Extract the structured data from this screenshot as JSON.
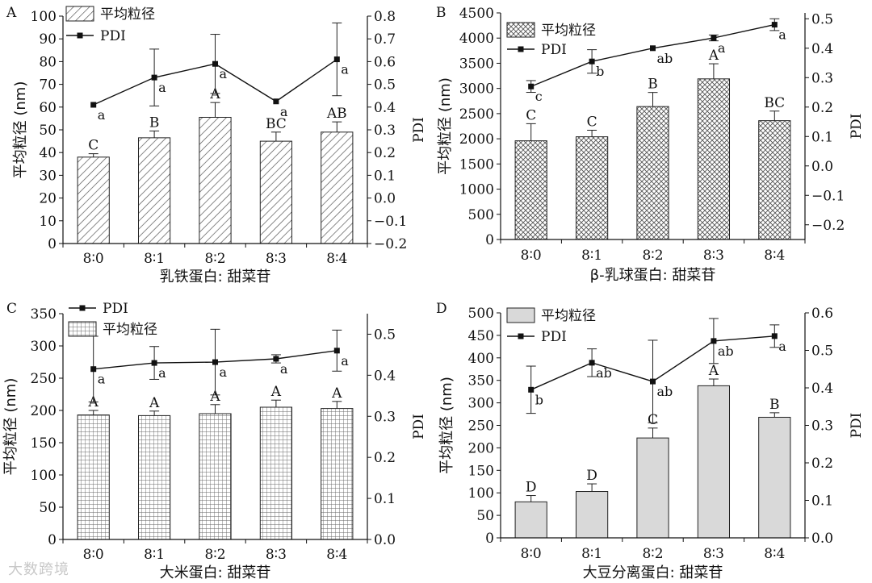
{
  "watermark": "大数跨境",
  "chart_data": [
    {
      "panel_label": "A",
      "type": "bar+line",
      "xlabel": "乳铁蛋白: 甜菜苷",
      "ylabel": "平均粒径 (nm)",
      "y2label": "PDI",
      "categories": [
        "8∶0",
        "8∶1",
        "8∶2",
        "8∶3",
        "8∶4"
      ],
      "bar_series": {
        "name": "平均粒径",
        "pattern": "diagonal",
        "values": [
          38,
          46.5,
          55.5,
          45,
          49
        ],
        "errors": [
          1.5,
          3,
          6.5,
          4,
          4.5
        ],
        "labels": [
          "C",
          "B",
          "A",
          "BC",
          "AB"
        ]
      },
      "line_series": {
        "name": "PDI",
        "values": [
          0.41,
          0.53,
          0.59,
          0.425,
          0.61
        ],
        "errors": [
          0,
          0.125,
          0.13,
          0,
          0.16
        ],
        "labels": [
          "a",
          "a",
          "a",
          "a",
          "a"
        ]
      },
      "ylim": [
        0,
        100
      ],
      "yticks": [
        0,
        10,
        20,
        30,
        40,
        50,
        60,
        70,
        80,
        90,
        100
      ],
      "y2lim": [
        -0.2,
        0.8
      ],
      "y2ticks": [
        "-0.2",
        "-0.1",
        "0.0",
        "0.1",
        "0.2",
        "0.3",
        "0.4",
        "0.5",
        "0.6",
        "0.7",
        "0.8"
      ],
      "legend": [
        "平均粒径",
        "PDI"
      ]
    },
    {
      "panel_label": "B",
      "type": "bar+line",
      "xlabel": "β-乳球蛋白: 甜菜苷",
      "ylabel": "平均粒径 (nm)",
      "y2label": "PDI",
      "categories": [
        "8∶0",
        "8∶1",
        "8∶2",
        "8∶3",
        "8∶4"
      ],
      "bar_series": {
        "name": "平均粒径",
        "pattern": "crosshatch",
        "values": [
          1960,
          2040,
          2640,
          3190,
          2360
        ],
        "errors": [
          340,
          130,
          280,
          300,
          190
        ],
        "labels": [
          "C",
          "C",
          "B",
          "A",
          "BC"
        ]
      },
      "line_series": {
        "name": "PDI",
        "values": [
          0.27,
          0.355,
          0.4,
          0.435,
          0.48
        ],
        "errors": [
          0.02,
          0.04,
          0,
          0.01,
          0.02
        ],
        "labels": [
          "c",
          "b",
          "ab",
          "a",
          "a"
        ]
      },
      "ylim": [
        0,
        4500
      ],
      "yticks": [
        0,
        500,
        1000,
        1500,
        2000,
        2500,
        3000,
        3500,
        4000,
        4500
      ],
      "y2lim": [
        -0.25,
        0.52
      ],
      "y2ticks": [
        "-0.2",
        "-0.1",
        "0.0",
        "0.1",
        "0.2",
        "0.3",
        "0.4",
        "0.5"
      ],
      "legend": [
        "平均粒径",
        "PDI"
      ]
    },
    {
      "panel_label": "C",
      "type": "bar+line",
      "xlabel": "大米蛋白: 甜菜苷",
      "ylabel": "平均粒径 (nm)",
      "y2label": "PDI",
      "categories": [
        "8∶0",
        "8∶1",
        "8∶2",
        "8∶3",
        "8∶4"
      ],
      "bar_series": {
        "name": "平均粒径",
        "pattern": "grid",
        "values": [
          193,
          192,
          195,
          205,
          203
        ],
        "errors": [
          7,
          7,
          14,
          11,
          11
        ],
        "labels": [
          "A",
          "A",
          "A",
          "A",
          "A"
        ]
      },
      "line_series": {
        "name": "PDI",
        "values": [
          0.415,
          0.43,
          0.432,
          0.44,
          0.46
        ],
        "errors": [
          0.08,
          0.04,
          0.08,
          0.01,
          0.05
        ],
        "labels": [
          "a",
          "a",
          "a",
          "a",
          "a"
        ]
      },
      "ylim": [
        0,
        350
      ],
      "yticks": [
        0,
        50,
        100,
        150,
        200,
        250,
        300,
        350
      ],
      "y2lim": [
        0,
        0.55
      ],
      "y2ticks": [
        "0.0",
        "0.1",
        "0.2",
        "0.3",
        "0.4",
        "0.5"
      ],
      "legend": [
        "PDI",
        "平均粒径"
      ]
    },
    {
      "panel_label": "D",
      "type": "bar+line",
      "xlabel": "大豆分离蛋白: 甜菜苷",
      "ylabel": "平均粒径 (nm)",
      "y2label": "PDI",
      "categories": [
        "8∶0",
        "8∶1",
        "8∶2",
        "8∶3",
        "8∶4"
      ],
      "bar_series": {
        "name": "平均粒径",
        "pattern": "solid-gray",
        "values": [
          80,
          103,
          222,
          338,
          268
        ],
        "errors": [
          14,
          17,
          22,
          15,
          10
        ],
        "labels": [
          "D",
          "D",
          "C",
          "A",
          "B"
        ]
      },
      "line_series": {
        "name": "PDI",
        "values": [
          0.395,
          0.467,
          0.417,
          0.525,
          0.538
        ],
        "errors": [
          0.063,
          0.037,
          0.11,
          0.06,
          0.03
        ],
        "labels": [
          "b",
          "ab",
          "ab",
          "ab",
          "a"
        ]
      },
      "ylim": [
        0,
        500
      ],
      "yticks": [
        0,
        50,
        100,
        150,
        200,
        250,
        300,
        350,
        400,
        450,
        500
      ],
      "y2lim": [
        0,
        0.6
      ],
      "y2ticks": [
        "0.0",
        "0.1",
        "0.2",
        "0.3",
        "0.4",
        "0.5",
        "0.6"
      ],
      "legend": [
        "平均粒径",
        "PDI"
      ]
    }
  ]
}
